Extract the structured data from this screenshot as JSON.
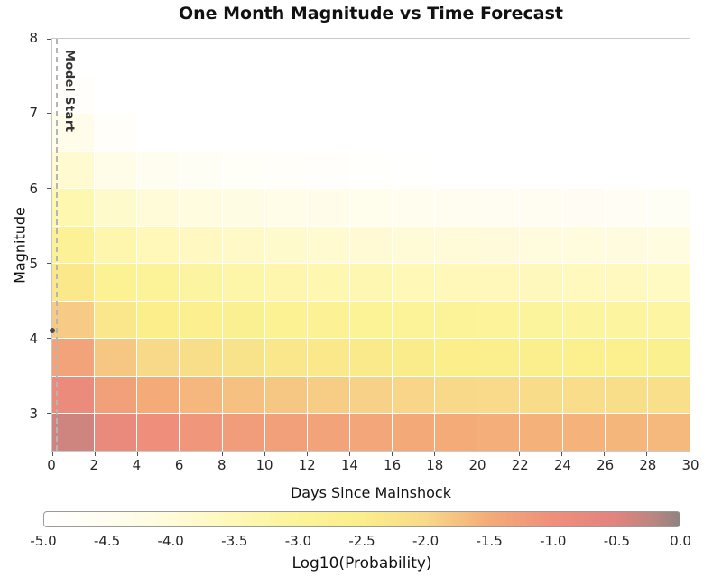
{
  "title": "One Month Magnitude vs Time Forecast",
  "axes": {
    "xlabel": "Days Since Mainshock",
    "ylabel": "Magnitude"
  },
  "annotations": {
    "model_start_label": "Model Start",
    "mainshock": {
      "day": 0,
      "magnitude": 4.1
    }
  },
  "chart_data": {
    "type": "heatmap",
    "title": "One Month Magnitude vs Time Forecast",
    "xlabel": "Days Since Mainshock",
    "ylabel": "Magnitude",
    "x_range": [
      0,
      30
    ],
    "y_range": [
      2.5,
      8
    ],
    "x_ticks": [
      0,
      2,
      4,
      6,
      8,
      10,
      12,
      14,
      16,
      18,
      20,
      22,
      24,
      26,
      28,
      30
    ],
    "y_ticks": [
      3,
      4,
      5,
      6,
      7,
      8
    ],
    "x_bin_edges_days": [
      0,
      2,
      4,
      6,
      8,
      10,
      12,
      14,
      16,
      18,
      20,
      22,
      24,
      26,
      28,
      30
    ],
    "y_bin_edges_magnitude": [
      2.5,
      3.0,
      3.5,
      4.0,
      4.5,
      5.0,
      5.5,
      6.0,
      6.5,
      7.0,
      7.5,
      8.0
    ],
    "rows_order": "bottom_to_top",
    "values_log10_probability": [
      [
        -0.35,
        -0.8,
        -1.0,
        -1.13,
        -1.23,
        -1.3,
        -1.36,
        -1.41,
        -1.46,
        -1.5,
        -1.53,
        -1.56,
        -1.59,
        -1.62,
        -1.65
      ],
      [
        -0.85,
        -1.3,
        -1.5,
        -1.63,
        -1.73,
        -1.8,
        -1.86,
        -1.91,
        -1.96,
        -2.0,
        -2.03,
        -2.06,
        -2.09,
        -2.12,
        -2.15
      ],
      [
        -1.35,
        -1.8,
        -2.0,
        -2.13,
        -2.23,
        -2.3,
        -2.36,
        -2.41,
        -2.46,
        -2.5,
        -2.53,
        -2.56,
        -2.59,
        -2.62,
        -2.65
      ],
      [
        -1.85,
        -2.3,
        -2.5,
        -2.63,
        -2.73,
        -2.8,
        -2.86,
        -2.91,
        -2.96,
        -3.0,
        -3.03,
        -3.06,
        -3.09,
        -3.12,
        -3.15
      ],
      [
        -2.35,
        -2.8,
        -3.0,
        -3.13,
        -3.23,
        -3.3,
        -3.36,
        -3.41,
        -3.46,
        -3.5,
        -3.53,
        -3.56,
        -3.59,
        -3.62,
        -3.65
      ],
      [
        -2.85,
        -3.3,
        -3.5,
        -3.63,
        -3.73,
        -3.8,
        -3.86,
        -3.91,
        -3.96,
        -4.0,
        -4.03,
        -4.06,
        -4.09,
        -4.12,
        -4.15
      ],
      [
        -3.35,
        -3.8,
        -4.0,
        -4.13,
        -4.23,
        -4.3,
        -4.36,
        -4.41,
        -4.46,
        -4.5,
        -4.53,
        -4.56,
        -4.59,
        -4.62,
        -4.65
      ],
      [
        -3.85,
        -4.3,
        -4.5,
        -4.63,
        -4.73,
        -4.8,
        -4.86,
        -4.91,
        -4.96,
        -5.0,
        -5.03,
        -5.06,
        -5.09,
        -5.12,
        -5.15
      ],
      [
        -4.35,
        -4.8,
        -5.0,
        -5.13,
        -5.23,
        -5.3,
        -5.36,
        -5.41,
        -5.46,
        -5.5,
        -5.53,
        -5.56,
        -5.59,
        -5.62,
        -5.65
      ],
      [
        -4.85,
        -5.3,
        -5.5,
        -5.63,
        -5.73,
        -5.8,
        -5.86,
        -5.91,
        -5.96,
        -6.0,
        -6.03,
        -6.06,
        -6.09,
        -6.12,
        -6.15
      ],
      [
        -5.35,
        -5.8,
        -6.0,
        -6.13,
        -6.23,
        -6.3,
        -6.36,
        -6.41,
        -6.46,
        -6.5,
        -6.53,
        -6.56,
        -6.59,
        -6.62,
        -6.65
      ]
    ],
    "annotations": {
      "model_start_label": "Model Start",
      "model_start_day": 0.2,
      "mainshock_marker": {
        "day": 0,
        "magnitude": 4.1
      }
    },
    "colorbar": {
      "label": "Log10(Probability)",
      "range": [
        -5,
        0
      ],
      "ticks": [
        -5.0,
        -4.5,
        -4.0,
        -3.5,
        -3.0,
        -2.5,
        -2.0,
        -1.5,
        -1.0,
        -0.5,
        0.0
      ],
      "stops": [
        [
          -5.0,
          "#ffffff"
        ],
        [
          -4.5,
          "#fffdf0"
        ],
        [
          -4.0,
          "#fffbd9"
        ],
        [
          -3.5,
          "#fff8b8"
        ],
        [
          -3.0,
          "#fcf399"
        ],
        [
          -2.5,
          "#fbee8b"
        ],
        [
          -2.0,
          "#f8d98a"
        ],
        [
          -1.5,
          "#f4ab78"
        ],
        [
          -1.0,
          "#ef8f7b"
        ],
        [
          -0.5,
          "#e2837f"
        ],
        [
          -0.2,
          "#b9867f"
        ],
        [
          0.0,
          "#8f8480"
        ]
      ]
    },
    "grid": "faint white cell borders",
    "legend_position": "bottom colorbar"
  }
}
